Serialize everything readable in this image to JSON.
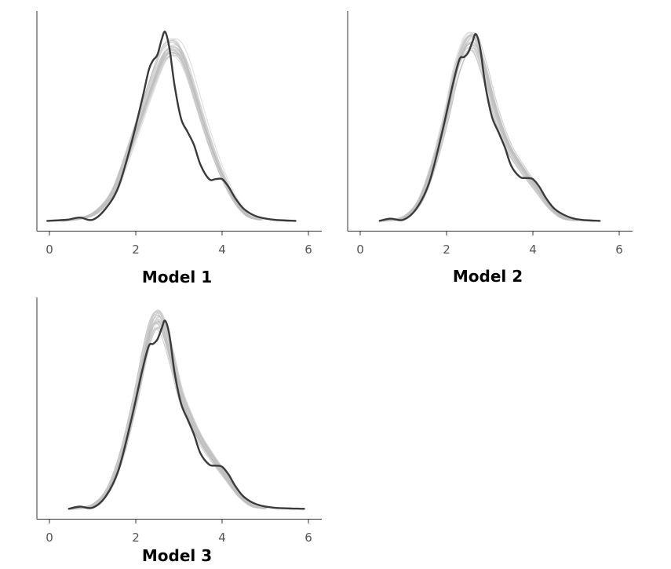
{
  "colors": {
    "observed": "#3a3a3a",
    "replicated": "#bfbfbf"
  },
  "chart_data": [
    {
      "type": "line",
      "title": "Model 1",
      "xlim": [
        -0.3,
        6.2
      ],
      "ylim": [
        0,
        1
      ],
      "xticks": [
        0,
        2,
        4,
        6
      ],
      "grid": false,
      "series": [
        {
          "role": "observed",
          "x": [
            -0.05,
            0.4,
            0.7,
            1.0,
            1.3,
            1.6,
            1.9,
            2.15,
            2.3,
            2.4,
            2.5,
            2.6,
            2.68,
            2.78,
            2.9,
            3.05,
            3.2,
            3.35,
            3.5,
            3.7,
            3.85,
            4.0,
            4.15,
            4.3,
            4.5,
            4.8,
            5.2,
            5.7
          ],
          "y": [
            0.045,
            0.05,
            0.06,
            0.05,
            0.1,
            0.2,
            0.4,
            0.6,
            0.73,
            0.775,
            0.8,
            0.87,
            0.905,
            0.83,
            0.66,
            0.51,
            0.45,
            0.39,
            0.3,
            0.235,
            0.235,
            0.235,
            0.2,
            0.15,
            0.1,
            0.065,
            0.05,
            0.045
          ]
        },
        {
          "role": "replicated",
          "x": [
            0.3,
            0.7,
            1.1,
            1.5,
            1.9,
            2.3,
            2.6,
            2.8,
            3.0,
            3.2,
            3.45,
            3.7,
            4.0,
            4.3,
            4.6,
            4.9
          ],
          "y": [
            0.045,
            0.055,
            0.085,
            0.18,
            0.39,
            0.62,
            0.78,
            0.83,
            0.82,
            0.74,
            0.58,
            0.42,
            0.26,
            0.14,
            0.07,
            0.05
          ]
        }
      ]
    },
    {
      "type": "line",
      "title": "Model 2",
      "xlim": [
        -0.3,
        6.2
      ],
      "ylim": [
        0,
        1
      ],
      "xticks": [
        0,
        2,
        4,
        6
      ],
      "grid": false,
      "series": [
        {
          "role": "observed",
          "x": [
            0.45,
            0.7,
            1.0,
            1.3,
            1.6,
            1.9,
            2.15,
            2.3,
            2.4,
            2.5,
            2.6,
            2.68,
            2.78,
            2.9,
            3.05,
            3.2,
            3.35,
            3.5,
            3.7,
            3.85,
            4.0,
            4.15,
            4.3,
            4.5,
            4.8,
            5.1,
            5.55
          ],
          "y": [
            0.045,
            0.055,
            0.05,
            0.1,
            0.22,
            0.45,
            0.67,
            0.78,
            0.79,
            0.81,
            0.86,
            0.895,
            0.83,
            0.66,
            0.52,
            0.45,
            0.38,
            0.295,
            0.245,
            0.24,
            0.235,
            0.2,
            0.15,
            0.1,
            0.065,
            0.05,
            0.045
          ]
        },
        {
          "role": "replicated",
          "x": [
            0.5,
            0.8,
            1.1,
            1.4,
            1.7,
            2.0,
            2.2,
            2.4,
            2.55,
            2.7,
            2.9,
            3.1,
            3.3,
            3.5,
            3.8,
            4.1,
            4.4,
            4.7,
            5.0
          ],
          "y": [
            0.045,
            0.05,
            0.07,
            0.14,
            0.3,
            0.52,
            0.7,
            0.82,
            0.86,
            0.84,
            0.72,
            0.57,
            0.45,
            0.36,
            0.27,
            0.19,
            0.11,
            0.06,
            0.047
          ]
        }
      ]
    },
    {
      "type": "line",
      "title": "Model 3",
      "xlim": [
        -0.3,
        6.2
      ],
      "ylim": [
        0,
        1
      ],
      "xticks": [
        0,
        2,
        4,
        6
      ],
      "grid": false,
      "series": [
        {
          "role": "observed",
          "x": [
            0.45,
            0.7,
            1.0,
            1.3,
            1.6,
            1.9,
            2.15,
            2.3,
            2.4,
            2.5,
            2.6,
            2.68,
            2.78,
            2.9,
            3.05,
            3.2,
            3.35,
            3.5,
            3.7,
            3.85,
            4.0,
            4.15,
            4.3,
            4.5,
            4.8,
            5.2,
            5.9
          ],
          "y": [
            0.045,
            0.055,
            0.05,
            0.1,
            0.22,
            0.45,
            0.67,
            0.78,
            0.79,
            0.81,
            0.86,
            0.895,
            0.83,
            0.66,
            0.52,
            0.45,
            0.38,
            0.295,
            0.245,
            0.24,
            0.235,
            0.2,
            0.15,
            0.1,
            0.065,
            0.05,
            0.045
          ]
        },
        {
          "role": "replicated",
          "x": [
            0.5,
            0.8,
            1.1,
            1.4,
            1.7,
            2.0,
            2.2,
            2.35,
            2.5,
            2.65,
            2.85,
            3.05,
            3.3,
            3.5,
            3.8,
            4.1,
            4.4,
            4.7,
            5.0
          ],
          "y": [
            0.045,
            0.05,
            0.07,
            0.14,
            0.3,
            0.54,
            0.73,
            0.85,
            0.9,
            0.86,
            0.72,
            0.56,
            0.44,
            0.36,
            0.27,
            0.19,
            0.11,
            0.06,
            0.047
          ]
        }
      ]
    }
  ]
}
